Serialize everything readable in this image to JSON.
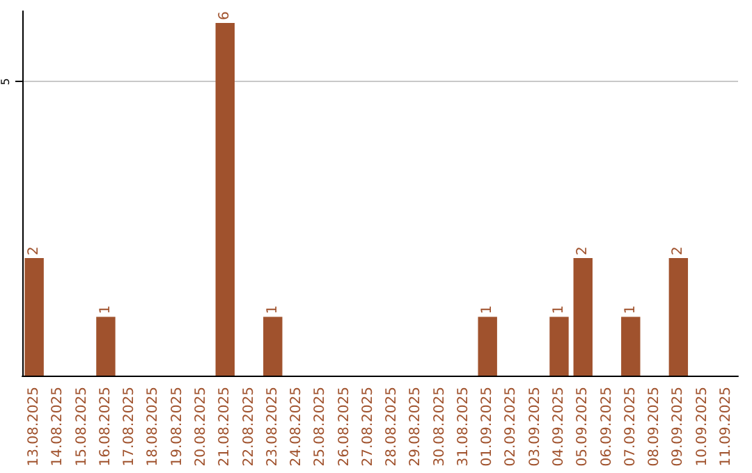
{
  "chart_data": {
    "type": "bar",
    "categories": [
      "13.08.2025",
      "14.08.2025",
      "15.08.2025",
      "16.08.2025",
      "17.08.2025",
      "18.08.2025",
      "19.08.2025",
      "20.08.2025",
      "21.08.2025",
      "22.08.2025",
      "23.08.2025",
      "24.08.2025",
      "25.08.2025",
      "26.08.2025",
      "27.08.2025",
      "28.08.2025",
      "29.08.2025",
      "30.08.2025",
      "31.08.2025",
      "01.09.2025",
      "02.09.2025",
      "03.09.2025",
      "04.09.2025",
      "05.09.2025",
      "06.09.2025",
      "07.09.2025",
      "08.09.2025",
      "09.09.2025",
      "10.09.2025",
      "11.09.2025"
    ],
    "values": [
      2,
      0,
      0,
      1,
      0,
      0,
      0,
      0,
      6,
      0,
      1,
      0,
      0,
      0,
      0,
      0,
      0,
      0,
      0,
      1,
      0,
      0,
      1,
      2,
      0,
      1,
      0,
      2,
      0,
      0
    ],
    "value_labels": [
      "2",
      null,
      null,
      "1",
      null,
      null,
      null,
      null,
      "6",
      null,
      "1",
      null,
      null,
      null,
      null,
      null,
      null,
      null,
      null,
      "1",
      null,
      null,
      "1",
      "2",
      null,
      "1",
      null,
      "2",
      null,
      null
    ],
    "color": "#a0522d",
    "ylim": [
      0,
      6.2
    ],
    "yticks": [
      5
    ],
    "grid": "y"
  }
}
